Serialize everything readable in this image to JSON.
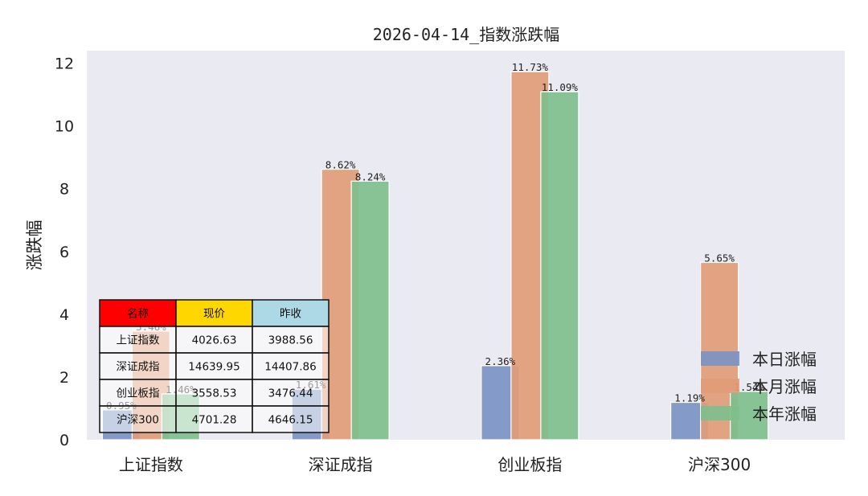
{
  "chart_data": {
    "type": "bar",
    "title": "2026-04-14_指数涨跌幅",
    "xlabel": "",
    "ylabel": "涨跌幅",
    "ylim": [
      0,
      12.4
    ],
    "yticks": [
      0,
      2,
      4,
      6,
      8,
      10,
      12
    ],
    "grid": false,
    "legend_position": "lower-right",
    "categories": [
      "上证指数",
      "深证成指",
      "创业板指",
      "沪深300"
    ],
    "series": [
      {
        "name": "本日涨幅",
        "color": "#7b93c4",
        "values": [
          0.95,
          1.61,
          2.36,
          1.19
        ],
        "labels": [
          "0.95%",
          "1.61%",
          "2.36%",
          "1.19%"
        ]
      },
      {
        "name": "本月涨幅",
        "color": "#e19c79",
        "values": [
          3.46,
          8.62,
          11.73,
          5.65
        ],
        "labels": [
          "3.46%",
          "8.62%",
          "11.73%",
          "5.65%"
        ]
      },
      {
        "name": "本年涨幅",
        "color": "#7fbf8d",
        "values": [
          1.46,
          8.24,
          11.09,
          1.54
        ],
        "labels": [
          "1.46%",
          "8.24%",
          "11.09%",
          "1.54%"
        ]
      }
    ],
    "table": {
      "headers": [
        {
          "text": "名称",
          "color": "#ff0000"
        },
        {
          "text": "现价",
          "color": "#ffd700"
        },
        {
          "text": "昨收",
          "color": "#add8e6"
        }
      ],
      "rows": [
        [
          "上证指数",
          "4026.63",
          "3988.56"
        ],
        [
          "深证成指",
          "14639.95",
          "14407.86"
        ],
        [
          "创业板指",
          "3558.53",
          "3476.44"
        ],
        [
          "沪深300",
          "4701.28",
          "4646.15"
        ]
      ]
    }
  }
}
